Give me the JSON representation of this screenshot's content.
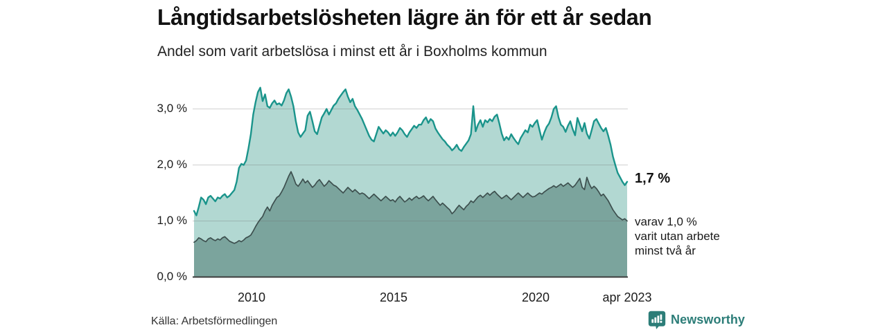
{
  "header": {
    "title": "Långtidsarbetslösheten lägre än för ett år sedan",
    "subtitle": "Andel som varit arbetslösa i minst ett år i Boxholms kommun"
  },
  "chart_data": {
    "type": "area",
    "title": "Långtidsarbetslösheten lägre än för ett år sedan",
    "subtitle": "Andel som varit arbetslösa i minst ett år i Boxholms kommun",
    "unit": "%",
    "x_range": [
      "2008-01",
      "2023-04"
    ],
    "x_interval": "monthly",
    "ylim": [
      0,
      3.5
    ],
    "grid": "horizontal",
    "x_ticks": [
      "2010",
      "2015",
      "2020",
      "apr 2023"
    ],
    "y_ticks": [
      "0,0 %",
      "1,0 %",
      "2,0 %",
      "3,0 %"
    ],
    "series": [
      {
        "id": "arbetslosa-minst-ett-ar",
        "color": "#1a948b",
        "fill": "#b2d8d2",
        "end_value": 1.7,
        "values": [
          1.18,
          1.1,
          1.25,
          1.42,
          1.38,
          1.3,
          1.42,
          1.45,
          1.4,
          1.35,
          1.42,
          1.4,
          1.45,
          1.48,
          1.42,
          1.45,
          1.5,
          1.55,
          1.7,
          1.95,
          2.02,
          2.0,
          2.08,
          2.3,
          2.55,
          2.9,
          3.12,
          3.3,
          3.38,
          3.14,
          3.26,
          3.05,
          3.02,
          3.1,
          3.15,
          3.08,
          3.1,
          3.06,
          3.15,
          3.28,
          3.35,
          3.22,
          3.05,
          2.78,
          2.58,
          2.5,
          2.56,
          2.62,
          2.88,
          2.95,
          2.78,
          2.6,
          2.55,
          2.7,
          2.85,
          2.92,
          3.0,
          2.9,
          2.98,
          3.06,
          3.1,
          3.18,
          3.24,
          3.3,
          3.35,
          3.22,
          3.12,
          3.18,
          3.05,
          2.98,
          2.9,
          2.82,
          2.72,
          2.62,
          2.52,
          2.45,
          2.42,
          2.55,
          2.68,
          2.62,
          2.56,
          2.62,
          2.58,
          2.52,
          2.58,
          2.52,
          2.58,
          2.66,
          2.62,
          2.55,
          2.5,
          2.58,
          2.64,
          2.7,
          2.66,
          2.72,
          2.72,
          2.8,
          2.85,
          2.75,
          2.82,
          2.78,
          2.65,
          2.58,
          2.52,
          2.46,
          2.42,
          2.36,
          2.32,
          2.26,
          2.3,
          2.36,
          2.28,
          2.25,
          2.32,
          2.38,
          2.44,
          2.55,
          3.05,
          2.6,
          2.72,
          2.8,
          2.68,
          2.8,
          2.76,
          2.82,
          2.78,
          2.86,
          2.9,
          2.74,
          2.56,
          2.44,
          2.5,
          2.45,
          2.55,
          2.48,
          2.42,
          2.37,
          2.48,
          2.55,
          2.62,
          2.58,
          2.72,
          2.68,
          2.75,
          2.8,
          2.62,
          2.45,
          2.58,
          2.68,
          2.74,
          2.85,
          3.0,
          3.05,
          2.85,
          2.72,
          2.68,
          2.59,
          2.7,
          2.78,
          2.64,
          2.53,
          2.84,
          2.72,
          2.6,
          2.75,
          2.56,
          2.47,
          2.62,
          2.78,
          2.82,
          2.74,
          2.66,
          2.6,
          2.66,
          2.52,
          2.36,
          2.15,
          2.0,
          1.86,
          1.78,
          1.7,
          1.64,
          1.7
        ]
      },
      {
        "id": "arbetslosa-minst-tva-ar",
        "color": "#3d4f4e",
        "fill": "#7ba49d",
        "end_value": 1.0,
        "values": [
          0.62,
          0.65,
          0.7,
          0.68,
          0.65,
          0.63,
          0.68,
          0.7,
          0.67,
          0.65,
          0.68,
          0.66,
          0.7,
          0.72,
          0.68,
          0.64,
          0.62,
          0.6,
          0.62,
          0.65,
          0.63,
          0.66,
          0.7,
          0.72,
          0.75,
          0.82,
          0.9,
          0.97,
          1.03,
          1.08,
          1.18,
          1.25,
          1.18,
          1.28,
          1.35,
          1.42,
          1.45,
          1.52,
          1.6,
          1.7,
          1.8,
          1.88,
          1.78,
          1.66,
          1.62,
          1.68,
          1.75,
          1.68,
          1.72,
          1.66,
          1.6,
          1.64,
          1.7,
          1.74,
          1.68,
          1.62,
          1.66,
          1.72,
          1.68,
          1.64,
          1.62,
          1.58,
          1.54,
          1.5,
          1.55,
          1.6,
          1.56,
          1.52,
          1.56,
          1.52,
          1.48,
          1.5,
          1.48,
          1.44,
          1.4,
          1.44,
          1.48,
          1.44,
          1.4,
          1.36,
          1.4,
          1.44,
          1.4,
          1.36,
          1.38,
          1.34,
          1.4,
          1.44,
          1.39,
          1.34,
          1.37,
          1.41,
          1.37,
          1.41,
          1.44,
          1.4,
          1.42,
          1.45,
          1.4,
          1.36,
          1.4,
          1.44,
          1.38,
          1.33,
          1.28,
          1.32,
          1.28,
          1.24,
          1.2,
          1.13,
          1.17,
          1.23,
          1.28,
          1.24,
          1.2,
          1.26,
          1.3,
          1.36,
          1.33,
          1.38,
          1.43,
          1.46,
          1.42,
          1.46,
          1.5,
          1.46,
          1.5,
          1.53,
          1.48,
          1.44,
          1.4,
          1.43,
          1.46,
          1.42,
          1.38,
          1.42,
          1.46,
          1.5,
          1.46,
          1.42,
          1.46,
          1.5,
          1.46,
          1.43,
          1.44,
          1.47,
          1.5,
          1.48,
          1.52,
          1.55,
          1.58,
          1.6,
          1.63,
          1.6,
          1.63,
          1.66,
          1.62,
          1.65,
          1.68,
          1.64,
          1.6,
          1.64,
          1.7,
          1.76,
          1.6,
          1.56,
          1.78,
          1.66,
          1.58,
          1.62,
          1.58,
          1.52,
          1.45,
          1.48,
          1.42,
          1.36,
          1.28,
          1.2,
          1.14,
          1.08,
          1.05,
          1.02,
          1.04,
          1.0
        ]
      }
    ],
    "annotations": {
      "end_value_label": "1,7 %",
      "end_note": "varav 1,0 %\nvarit utan arbete\nminst två år"
    }
  },
  "footer": {
    "source": "Källa: Arbetsförmedlingen",
    "brand": "Newsworthy"
  },
  "colors": {
    "accent_teal": "#1a948b",
    "light_fill": "#b2d8d2",
    "dark_fill": "#7ba49d",
    "dark_line": "#3d4f4e",
    "grid": "#d2d2d2",
    "axis": "#3c3c3c",
    "brand_teal": "#2c7d78",
    "text": "#1a1a1a"
  }
}
